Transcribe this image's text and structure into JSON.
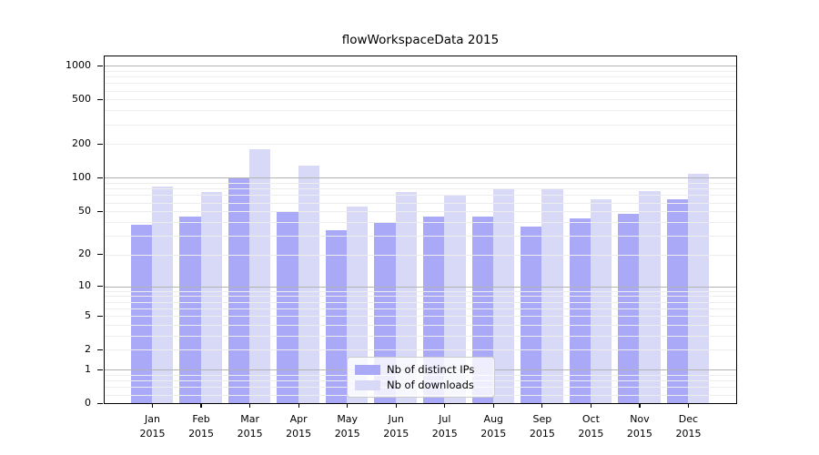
{
  "chart_data": {
    "type": "bar",
    "title": "flowWorkspaceData 2015",
    "scale": "log1p (symlog-like, 0 at baseline)",
    "categories": [
      "Jan",
      "Feb",
      "Mar",
      "Apr",
      "May",
      "Jun",
      "Jul",
      "Aug",
      "Sep",
      "Oct",
      "Nov",
      "Dec"
    ],
    "year_label": "2015",
    "series": [
      {
        "name": "Nb of distinct IPs",
        "color": "#a9a9f7",
        "values": [
          37,
          44,
          100,
          49,
          33,
          39,
          44,
          44,
          36,
          43,
          47,
          63
        ]
      },
      {
        "name": "Nb of downloads",
        "color": "#d8d8f7",
        "values": [
          82,
          74,
          180,
          127,
          55,
          74,
          68,
          78,
          79,
          63,
          75,
          107
        ]
      }
    ],
    "yticks": [
      0,
      1,
      2,
      5,
      10,
      20,
      50,
      100,
      200,
      500,
      1000
    ],
    "ylim": [
      0,
      1240
    ],
    "xlabel": "",
    "ylabel": "",
    "grid": "on",
    "legend_position": "lower-center-inside"
  },
  "colors": {
    "grid_major": "#b3b3b3",
    "grid_minor": "#ededed",
    "axis": "#000000",
    "background": "#ffffff"
  }
}
